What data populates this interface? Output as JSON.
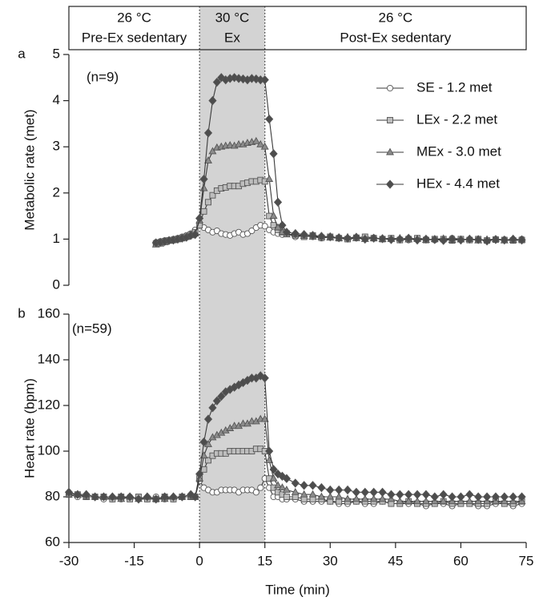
{
  "header": {
    "phases": [
      {
        "temp": "26 °C",
        "label": "Pre-Ex sedentary"
      },
      {
        "temp": "30 °C",
        "label": "Ex"
      },
      {
        "temp": "26 °C",
        "label": "Post-Ex sedentary"
      }
    ]
  },
  "chart_data": [
    {
      "type": "line",
      "label": "a",
      "annotation": "(n=9)",
      "ylabel": "Metabolic rate (met)",
      "xlim": [
        -30,
        75
      ],
      "ylim": [
        0,
        5
      ],
      "yticks": [
        0,
        1,
        2,
        3,
        4,
        5
      ],
      "shade": [
        0,
        15
      ],
      "legend": "upper right",
      "x": [
        -10,
        -9,
        -8,
        -7,
        -6,
        -5,
        -4,
        -3,
        -2,
        -1,
        0,
        1,
        2,
        3,
        4,
        5,
        6,
        7,
        8,
        9,
        10,
        11,
        12,
        13,
        14,
        15,
        16,
        17,
        18,
        19,
        20,
        22,
        24,
        26,
        28,
        30,
        32,
        34,
        36,
        38,
        40,
        42,
        44,
        46,
        48,
        50,
        52,
        54,
        56,
        58,
        60,
        62,
        64,
        66,
        68,
        70,
        72,
        74
      ],
      "series": [
        {
          "name": "SE - 1.2 met",
          "marker": "circle",
          "color": "#ffffff",
          "values": [
            0.93,
            0.95,
            0.97,
            0.98,
            1.0,
            1.02,
            1.05,
            1.08,
            1.12,
            1.2,
            1.35,
            1.25,
            1.2,
            1.15,
            1.18,
            1.12,
            1.1,
            1.08,
            1.12,
            1.15,
            1.1,
            1.12,
            1.18,
            1.25,
            1.3,
            1.28,
            1.2,
            1.15,
            1.12,
            1.1,
            1.12,
            1.05,
            1.08,
            1.05,
            1.02,
            1.05,
            1.03,
            1.0,
            1.02,
            1.05,
            1.03,
            1.0,
            1.02,
            1.0,
            0.98,
            1.02,
            1.0,
            0.98,
            1.0,
            1.02,
            1.0,
            0.98,
            1.0,
            0.97,
            1.0,
            0.99,
            0.98,
            1.0
          ]
        },
        {
          "name": "LEx - 2.2 met",
          "marker": "square",
          "color": "#bdbdbd",
          "values": [
            0.9,
            0.92,
            0.95,
            0.97,
            0.98,
            1.0,
            1.02,
            1.05,
            1.1,
            1.15,
            1.3,
            1.6,
            1.8,
            1.95,
            2.05,
            2.1,
            2.12,
            2.15,
            2.15,
            2.15,
            2.2,
            2.22,
            2.25,
            2.25,
            2.28,
            2.25,
            1.5,
            1.3,
            1.2,
            1.15,
            1.12,
            1.08,
            1.05,
            1.08,
            1.03,
            1.05,
            1.02,
            1.0,
            1.03,
            1.05,
            1.02,
            1.0,
            1.02,
            0.98,
            1.0,
            1.02,
            0.98,
            1.0,
            1.0,
            0.97,
            1.0,
            0.98,
            1.0,
            0.97,
            0.99,
            0.98,
            0.97,
            0.98
          ]
        },
        {
          "name": "MEx - 3.0 met",
          "marker": "triangle",
          "color": "#8c8c8c",
          "values": [
            0.88,
            0.9,
            0.93,
            0.96,
            0.98,
            1.0,
            1.03,
            1.05,
            1.08,
            1.12,
            1.4,
            2.1,
            2.7,
            2.9,
            2.98,
            3.0,
            3.02,
            3.03,
            3.02,
            3.05,
            3.05,
            3.08,
            3.1,
            3.12,
            3.05,
            3.0,
            2.3,
            1.5,
            1.25,
            1.15,
            1.1,
            1.1,
            1.07,
            1.05,
            1.05,
            1.03,
            1.02,
            1.04,
            1.02,
            1.0,
            1.02,
            1.0,
            1.0,
            1.02,
            0.99,
            1.0,
            0.98,
            1.0,
            1.01,
            0.98,
            0.99,
            1.0,
            0.97,
            0.99,
            1.0,
            0.97,
            0.98,
            0.99
          ]
        },
        {
          "name": "HEx - 4.4 met",
          "marker": "diamond",
          "color": "#4d4d4d",
          "values": [
            0.92,
            0.93,
            0.95,
            0.97,
            0.98,
            1.0,
            1.02,
            1.04,
            1.08,
            1.1,
            1.45,
            2.3,
            3.3,
            4.0,
            4.4,
            4.5,
            4.45,
            4.48,
            4.5,
            4.48,
            4.47,
            4.45,
            4.48,
            4.47,
            4.45,
            4.45,
            3.6,
            2.85,
            1.8,
            1.3,
            1.15,
            1.12,
            1.1,
            1.08,
            1.06,
            1.05,
            1.03,
            1.02,
            1.04,
            1.0,
            1.02,
            1.01,
            0.99,
            1.0,
            1.02,
            0.98,
            1.0,
            0.99,
            0.97,
            1.0,
            0.98,
            1.0,
            0.99,
            0.96,
            0.99,
            0.98,
            1.0,
            0.98
          ]
        }
      ]
    },
    {
      "type": "line",
      "label": "b",
      "annotation": "(n=59)",
      "ylabel": "Heart rate (bpm)",
      "xlabel": "Time (min)",
      "xlim": [
        -30,
        75
      ],
      "xticks": [
        -30,
        -15,
        0,
        15,
        30,
        45,
        60,
        75
      ],
      "ylim": [
        60,
        160
      ],
      "yticks": [
        60,
        80,
        100,
        120,
        140,
        160
      ],
      "shade": [
        0,
        15
      ],
      "x": [
        -30,
        -28,
        -26,
        -24,
        -22,
        -20,
        -18,
        -16,
        -14,
        -12,
        -10,
        -8,
        -6,
        -4,
        -2,
        -1,
        0,
        1,
        2,
        3,
        4,
        5,
        6,
        7,
        8,
        9,
        10,
        11,
        12,
        13,
        14,
        15,
        16,
        17,
        18,
        19,
        20,
        22,
        24,
        26,
        28,
        30,
        32,
        34,
        36,
        38,
        40,
        42,
        44,
        46,
        48,
        50,
        52,
        54,
        56,
        58,
        60,
        62,
        64,
        66,
        68,
        70,
        72,
        74
      ],
      "series": [
        {
          "marker": "circle",
          "color": "#ffffff",
          "values": [
            81,
            80,
            80,
            80,
            79,
            79,
            79,
            80,
            79,
            79,
            80,
            79,
            79,
            80,
            80,
            80,
            87,
            84,
            83,
            82,
            82,
            83,
            83,
            83,
            83,
            82,
            83,
            83,
            83,
            82,
            84,
            88,
            84,
            80,
            80,
            79,
            79,
            79,
            78,
            78,
            78,
            78,
            77,
            77,
            78,
            77,
            77,
            78,
            77,
            77,
            77,
            77,
            76,
            77,
            77,
            76,
            77,
            77,
            76,
            76,
            77,
            77,
            76,
            77
          ]
        },
        {
          "marker": "square",
          "color": "#bdbdbd",
          "values": [
            81,
            81,
            80,
            80,
            80,
            79,
            80,
            79,
            80,
            79,
            79,
            80,
            79,
            80,
            80,
            80,
            88,
            92,
            96,
            98,
            99,
            99,
            99,
            100,
            100,
            100,
            100,
            100,
            100,
            101,
            101,
            100,
            88,
            84,
            82,
            81,
            80,
            80,
            79,
            79,
            79,
            78,
            78,
            78,
            78,
            78,
            78,
            78,
            77,
            77,
            78,
            77,
            77,
            77,
            78,
            77,
            77,
            77,
            77,
            77,
            78,
            77,
            77,
            78
          ]
        },
        {
          "marker": "triangle",
          "color": "#8c8c8c",
          "values": [
            81,
            81,
            80,
            80,
            80,
            80,
            79,
            80,
            79,
            80,
            79,
            79,
            80,
            80,
            80,
            80,
            88,
            98,
            103,
            106,
            107,
            108,
            109,
            110,
            111,
            111,
            112,
            112,
            113,
            113,
            114,
            114,
            96,
            88,
            85,
            84,
            83,
            82,
            81,
            81,
            80,
            80,
            80,
            79,
            79,
            79,
            79,
            79,
            79,
            78,
            78,
            78,
            78,
            78,
            78,
            78,
            78,
            78,
            78,
            78,
            78,
            78,
            78,
            78
          ]
        },
        {
          "marker": "diamond",
          "color": "#4d4d4d",
          "values": [
            82,
            81,
            81,
            80,
            80,
            80,
            80,
            80,
            79,
            80,
            79,
            80,
            80,
            80,
            81,
            80,
            90,
            104,
            114,
            119,
            122,
            124,
            126,
            127,
            128,
            129,
            130,
            131,
            132,
            132,
            133,
            132,
            100,
            92,
            90,
            89,
            88,
            86,
            85,
            85,
            84,
            83,
            83,
            83,
            82,
            82,
            82,
            82,
            81,
            81,
            81,
            81,
            81,
            80,
            81,
            80,
            80,
            81,
            80,
            80,
            80,
            80,
            80,
            80
          ]
        }
      ]
    }
  ]
}
